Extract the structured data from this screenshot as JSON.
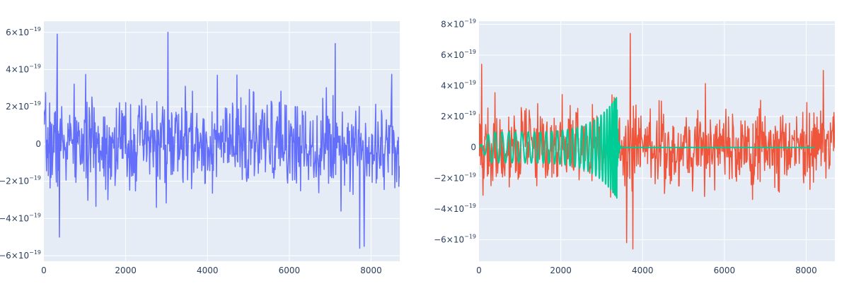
{
  "chart_data": [
    {
      "type": "line",
      "title": "",
      "xlabel": "",
      "ylabel": "",
      "xlim": [
        0,
        8700
      ],
      "ylim": [
        -6.3e-19,
        6.6e-19
      ],
      "grid": true,
      "background": "#e5ecf6",
      "x_ticks": [
        {
          "value": 0,
          "label": "0"
        },
        {
          "value": 2000,
          "label": "2000"
        },
        {
          "value": 4000,
          "label": "4000"
        },
        {
          "value": 6000,
          "label": "6000"
        },
        {
          "value": 8000,
          "label": "8000"
        }
      ],
      "y_ticks": [
        {
          "value": 6e-19,
          "mantissa": "6×10",
          "exponent": "−19",
          "label": ""
        },
        {
          "value": 4e-19,
          "mantissa": "4×10",
          "exponent": "−19",
          "label": ""
        },
        {
          "value": 2e-19,
          "mantissa": "2×10",
          "exponent": "−19",
          "label": ""
        },
        {
          "value": 0,
          "mantissa": "",
          "exponent": "",
          "label": "0"
        },
        {
          "value": -2e-19,
          "mantissa": "−2×10",
          "exponent": "−19",
          "label": ""
        },
        {
          "value": -4e-19,
          "mantissa": "−4×10",
          "exponent": "−19",
          "label": ""
        },
        {
          "value": -6e-19,
          "mantissa": "−6×10",
          "exponent": "−19",
          "label": ""
        }
      ],
      "series": [
        {
          "color": "#636efa",
          "kind": "noise",
          "x_range": [
            0,
            8700
          ],
          "n_samples": 800,
          "sigma": 1.2e-19,
          "seed": 7,
          "peaks": [
            {
              "x": 330,
              "y": 5.9e-19
            },
            {
              "x": 3030,
              "y": 6e-19
            },
            {
              "x": 7120,
              "y": 5.4e-19
            },
            {
              "x": 380,
              "y": -5e-19
            },
            {
              "x": 7720,
              "y": -5.6e-19
            },
            {
              "x": 7830,
              "y": -5.5e-19
            }
          ]
        }
      ]
    },
    {
      "type": "line",
      "title": "",
      "xlabel": "",
      "ylabel": "",
      "xlim": [
        0,
        8700
      ],
      "ylim": [
        -7.4e-19,
        8.2e-19
      ],
      "grid": true,
      "background": "#e5ecf6",
      "x_ticks": [
        {
          "value": 0,
          "label": "0"
        },
        {
          "value": 2000,
          "label": "2000"
        },
        {
          "value": 4000,
          "label": "4000"
        },
        {
          "value": 6000,
          "label": "6000"
        },
        {
          "value": 8000,
          "label": "8000"
        }
      ],
      "y_ticks": [
        {
          "value": 8e-19,
          "mantissa": "8×10",
          "exponent": "−19",
          "label": ""
        },
        {
          "value": 6e-19,
          "mantissa": "6×10",
          "exponent": "−19",
          "label": ""
        },
        {
          "value": 4e-19,
          "mantissa": "4×10",
          "exponent": "−19",
          "label": ""
        },
        {
          "value": 2e-19,
          "mantissa": "2×10",
          "exponent": "−19",
          "label": ""
        },
        {
          "value": 0,
          "mantissa": "",
          "exponent": "",
          "label": "0"
        },
        {
          "value": -2e-19,
          "mantissa": "−2×10",
          "exponent": "−19",
          "label": ""
        },
        {
          "value": -4e-19,
          "mantissa": "−4×10",
          "exponent": "−19",
          "label": ""
        },
        {
          "value": -6e-19,
          "mantissa": "−6×10",
          "exponent": "−19",
          "label": ""
        }
      ],
      "series": [
        {
          "color": "#ef553b",
          "kind": "noise",
          "x_range": [
            0,
            8700
          ],
          "n_samples": 800,
          "sigma": 1.3e-19,
          "seed": 19,
          "peaks": [
            {
              "x": 60,
              "y": 5.4e-19
            },
            {
              "x": 3700,
              "y": 7.4e-19
            },
            {
              "x": 3760,
              "y": -6.6e-19
            },
            {
              "x": 3610,
              "y": -6.2e-19
            },
            {
              "x": 8420,
              "y": 5e-19
            }
          ]
        },
        {
          "color": "#00cc96",
          "kind": "chirp",
          "x_range": [
            0,
            8200
          ],
          "x_merger": 3370,
          "amplitude_base": 1e-19,
          "amplitude_peak": 3.3e-19,
          "cycles": 30
        }
      ]
    }
  ]
}
